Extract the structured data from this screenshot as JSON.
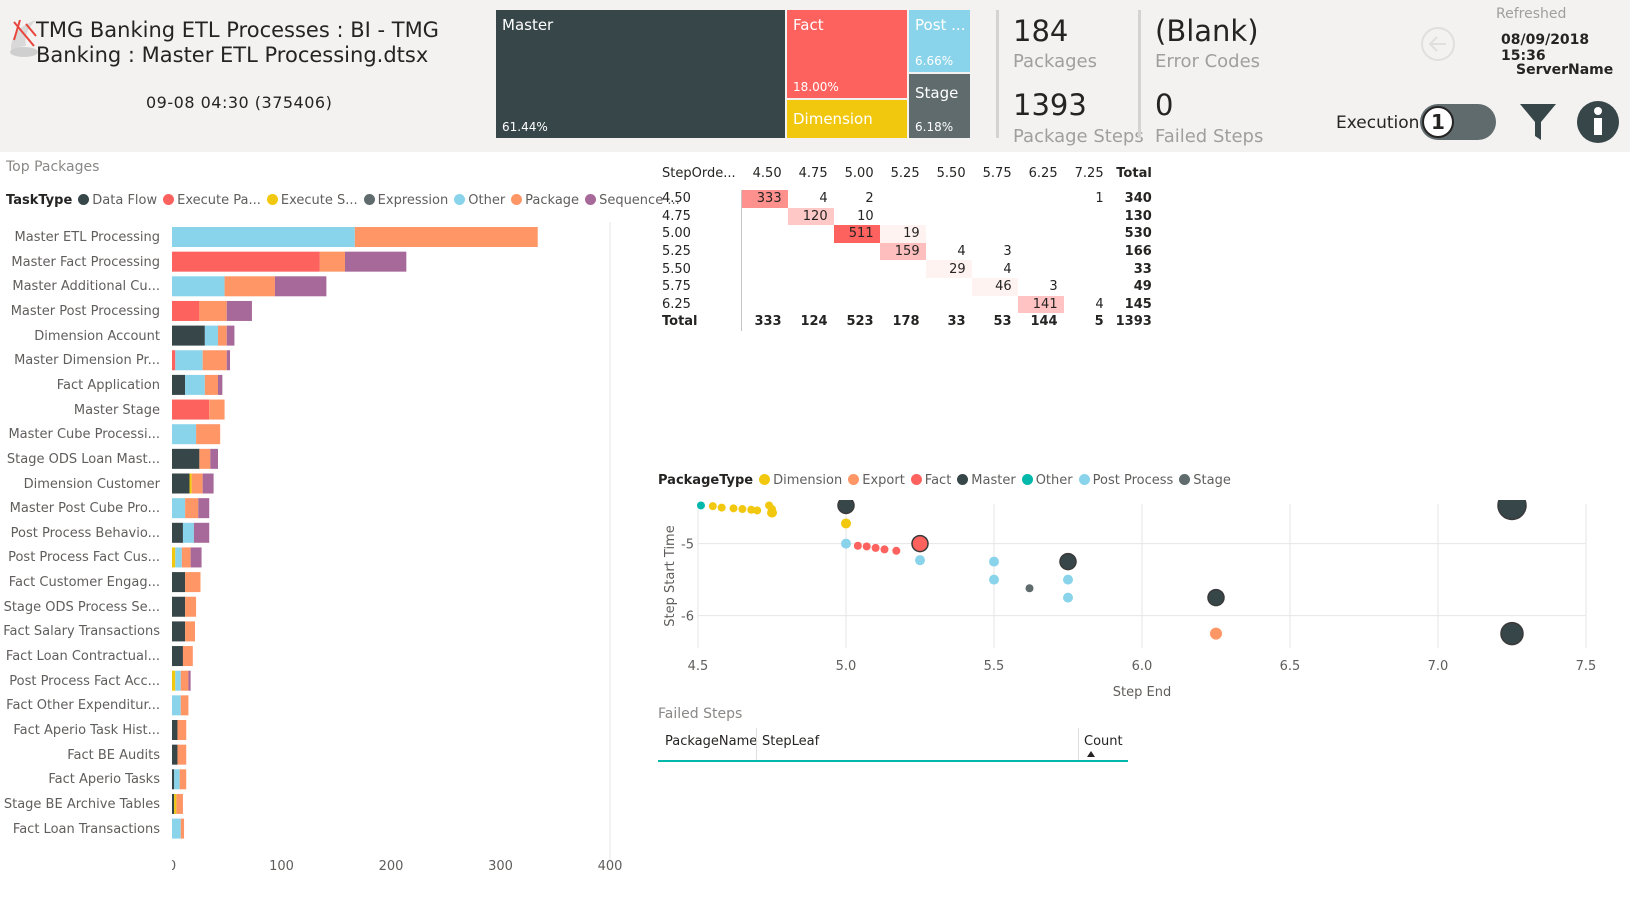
{
  "header": {
    "title": "TMG Banking ETL Processes : BI - TMG Banking : Master ETL Processing.dtsx",
    "run_id": "09-08 04:30 (375406)",
    "refreshed_label": "Refreshed",
    "refreshed_value": "08/09/2018 15:36",
    "server_name": "ServerName",
    "execution_label": "Execution",
    "execution_value": "1"
  },
  "treemap": [
    {
      "name": "Master",
      "pct": "61.44%",
      "color": "#374649"
    },
    {
      "name": "Fact",
      "pct": "18.00%",
      "color": "#fd625e"
    },
    {
      "name": "Dimension",
      "pct": "",
      "color": "#f2c80f"
    },
    {
      "name": "Post ...",
      "pct": "6.66%",
      "color": "#8ad4eb"
    },
    {
      "name": "Stage",
      "pct": "6.18%",
      "color": "#5f6b6d"
    }
  ],
  "kpis": {
    "packages_value": "184",
    "packages_label": "Packages",
    "steps_value": "1393",
    "steps_label": "Package Steps",
    "error_value": "(Blank)",
    "error_label": "Error Codes",
    "failed_value": "0",
    "failed_label": "Failed Steps"
  },
  "colors": {
    "Data Flow": "#374649",
    "Execute Pa...": "#fd625e",
    "Execute S...": "#f2c80f",
    "Expression": "#5f6b6d",
    "Other": "#8ad4eb",
    "Package": "#fe9666",
    "Sequence ...": "#a66999"
  },
  "top_packages": {
    "title": "Top Packages",
    "legend_title": "TaskType",
    "legend": [
      "Data Flow",
      "Execute Pa...",
      "Execute S...",
      "Expression",
      "Other",
      "Package",
      "Sequence ..."
    ]
  },
  "chart_data": [
    {
      "type": "bar",
      "orientation": "horizontal-stacked",
      "series_names": [
        "Data Flow",
        "Execute Pa...",
        "Execute S...",
        "Expression",
        "Other",
        "Package",
        "Sequence ..."
      ],
      "categories": [
        "Master ETL Processing",
        "Master Fact Processing",
        "Master Additional Cu...",
        "Master Post Processing",
        "Dimension Account",
        "Master Dimension Pr...",
        "Fact Application",
        "Master Stage",
        "Master Cube Processi...",
        "Stage ODS Loan Mast...",
        "Dimension Customer",
        "Master Post Cube Pro...",
        "Post Process Behavio...",
        "Post Process Fact Cus...",
        "Fact Customer Engag...",
        "Stage ODS Process Se...",
        "Fact Salary Transactions",
        "Fact Loan Contractual...",
        "Post Process Fact Acc...",
        "Fact Other Expenditur...",
        "Fact Aperio Task Hist...",
        "Fact BE Audits",
        "Fact Aperio Tasks",
        "Stage BE Archive Tables",
        "Fact Loan Transactions"
      ],
      "values": [
        [
          0,
          0,
          0,
          0,
          167,
          167,
          0
        ],
        [
          0,
          135,
          0,
          0,
          0,
          23,
          56
        ],
        [
          0,
          0,
          0,
          0,
          48,
          46,
          47
        ],
        [
          0,
          25,
          0,
          0,
          0,
          25,
          23
        ],
        [
          30,
          0,
          0,
          0,
          12,
          8,
          7
        ],
        [
          0,
          3,
          0,
          0,
          25,
          22,
          3
        ],
        [
          12,
          0,
          0,
          0,
          18,
          12,
          4
        ],
        [
          0,
          34,
          0,
          0,
          0,
          14,
          0
        ],
        [
          0,
          0,
          0,
          0,
          22,
          22,
          0
        ],
        [
          25,
          0,
          0,
          0,
          0,
          10,
          7
        ],
        [
          16,
          0,
          2,
          0,
          0,
          10,
          10
        ],
        [
          0,
          0,
          0,
          0,
          12,
          12,
          10
        ],
        [
          10,
          0,
          0,
          0,
          10,
          0,
          14
        ],
        [
          0,
          0,
          3,
          0,
          6,
          8,
          10
        ],
        [
          12,
          0,
          0,
          0,
          0,
          14,
          0
        ],
        [
          12,
          0,
          0,
          0,
          0,
          10,
          0
        ],
        [
          12,
          0,
          0,
          0,
          0,
          9,
          0
        ],
        [
          10,
          0,
          0,
          0,
          0,
          9,
          0
        ],
        [
          0,
          0,
          3,
          0,
          5,
          7,
          2
        ],
        [
          0,
          0,
          0,
          0,
          8,
          7,
          0
        ],
        [
          5,
          0,
          0,
          0,
          0,
          8,
          0
        ],
        [
          5,
          0,
          0,
          0,
          0,
          8,
          0
        ],
        [
          2,
          0,
          0,
          0,
          5,
          6,
          0
        ],
        [
          2,
          0,
          2,
          0,
          0,
          6,
          0
        ],
        [
          0,
          0,
          0,
          0,
          8,
          3,
          0
        ]
      ],
      "xlim": [
        0,
        400
      ],
      "xticks": [
        "0",
        "100",
        "200",
        "300",
        "400"
      ]
    },
    {
      "type": "table",
      "row_header": "StepOrde...",
      "columns": [
        "4.50",
        "4.75",
        "5.00",
        "5.25",
        "5.50",
        "5.75",
        "6.25",
        "7.25",
        "Total"
      ],
      "rows": [
        {
          "label": "4.50",
          "cells": [
            "333",
            "4",
            "2",
            "",
            "",
            "",
            "",
            "1",
            "340"
          ]
        },
        {
          "label": "4.75",
          "cells": [
            "",
            "120",
            "10",
            "",
            "",
            "",
            "",
            "",
            "130"
          ]
        },
        {
          "label": "5.00",
          "cells": [
            "",
            "",
            "511",
            "19",
            "",
            "",
            "",
            "",
            "530"
          ]
        },
        {
          "label": "5.25",
          "cells": [
            "",
            "",
            "",
            "159",
            "4",
            "3",
            "",
            "",
            "166"
          ]
        },
        {
          "label": "5.50",
          "cells": [
            "",
            "",
            "",
            "",
            "29",
            "4",
            "",
            "",
            "33"
          ]
        },
        {
          "label": "5.75",
          "cells": [
            "",
            "",
            "",
            "",
            "",
            "46",
            "3",
            "",
            "49"
          ]
        },
        {
          "label": "6.25",
          "cells": [
            "",
            "",
            "",
            "",
            "",
            "",
            "141",
            "4",
            "145"
          ]
        },
        {
          "label": "Total",
          "cells": [
            "333",
            "124",
            "523",
            "178",
            "33",
            "53",
            "144",
            "5",
            "1393"
          ]
        }
      ],
      "heat_max": 511
    },
    {
      "type": "scatter",
      "legend_title": "PackageType",
      "legend": [
        {
          "name": "Dimension",
          "color": "#f2c80f"
        },
        {
          "name": "Export",
          "color": "#fe9666"
        },
        {
          "name": "Fact",
          "color": "#fd625e"
        },
        {
          "name": "Master",
          "color": "#374649"
        },
        {
          "name": "Other",
          "color": "#01b8aa"
        },
        {
          "name": "Post Process",
          "color": "#8ad4eb"
        },
        {
          "name": "Stage",
          "color": "#5f6b6d"
        }
      ],
      "xlabel": "Step End",
      "ylabel": "Step Start Time",
      "xlim": [
        4.5,
        7.5
      ],
      "ylim": [
        -6.45,
        -4.45
      ],
      "xticks": [
        "4.5",
        "5.0",
        "5.5",
        "6.0",
        "6.5",
        "7.0",
        "7.5"
      ],
      "yticks": [
        -5,
        -6
      ],
      "points": [
        {
          "x": 4.51,
          "y": -4.47,
          "t": "Other",
          "r": 4
        },
        {
          "x": 4.55,
          "y": -4.48,
          "t": "Dimension",
          "r": 4
        },
        {
          "x": 4.58,
          "y": -4.5,
          "t": "Dimension",
          "r": 4
        },
        {
          "x": 4.62,
          "y": -4.51,
          "t": "Dimension",
          "r": 4
        },
        {
          "x": 4.65,
          "y": -4.52,
          "t": "Dimension",
          "r": 4
        },
        {
          "x": 4.68,
          "y": -4.53,
          "t": "Dimension",
          "r": 4
        },
        {
          "x": 4.7,
          "y": -4.54,
          "t": "Dimension",
          "r": 4
        },
        {
          "x": 4.74,
          "y": -4.47,
          "t": "Dimension",
          "r": 4
        },
        {
          "x": 4.75,
          "y": -4.52,
          "t": "Dimension",
          "r": 4
        },
        {
          "x": 4.75,
          "y": -4.57,
          "t": "Dimension",
          "r": 5
        },
        {
          "x": 5.0,
          "y": -4.47,
          "t": "Master",
          "r": 8
        },
        {
          "x": 5.0,
          "y": -4.72,
          "t": "Dimension",
          "r": 5
        },
        {
          "x": 5.0,
          "y": -5.0,
          "t": "Post Process",
          "r": 5
        },
        {
          "x": 5.04,
          "y": -5.03,
          "t": "Fact",
          "r": 4
        },
        {
          "x": 5.07,
          "y": -5.04,
          "t": "Fact",
          "r": 4
        },
        {
          "x": 5.1,
          "y": -5.06,
          "t": "Fact",
          "r": 4
        },
        {
          "x": 5.13,
          "y": -5.08,
          "t": "Fact",
          "r": 4
        },
        {
          "x": 5.17,
          "y": -5.1,
          "t": "Fact",
          "r": 4
        },
        {
          "x": 5.25,
          "y": -5.0,
          "t": "Fact",
          "r": 8
        },
        {
          "x": 5.25,
          "y": -5.23,
          "t": "Post Process",
          "r": 5
        },
        {
          "x": 5.5,
          "y": -5.25,
          "t": "Post Process",
          "r": 5
        },
        {
          "x": 5.5,
          "y": -5.5,
          "t": "Post Process",
          "r": 5
        },
        {
          "x": 5.62,
          "y": -5.62,
          "t": "Stage",
          "r": 4
        },
        {
          "x": 5.75,
          "y": -5.25,
          "t": "Master",
          "r": 8
        },
        {
          "x": 5.75,
          "y": -5.5,
          "t": "Post Process",
          "r": 5
        },
        {
          "x": 5.75,
          "y": -5.75,
          "t": "Post Process",
          "r": 5
        },
        {
          "x": 6.25,
          "y": -5.75,
          "t": "Master",
          "r": 8
        },
        {
          "x": 6.25,
          "y": -6.25,
          "t": "Export",
          "r": 6
        },
        {
          "x": 7.25,
          "y": -4.47,
          "t": "Master",
          "r": 14
        },
        {
          "x": 7.25,
          "y": -6.25,
          "t": "Master",
          "r": 11
        }
      ]
    }
  ],
  "failed_steps": {
    "title": "Failed Steps",
    "columns": [
      "PackageName",
      "StepLeaf",
      "Count"
    ]
  }
}
